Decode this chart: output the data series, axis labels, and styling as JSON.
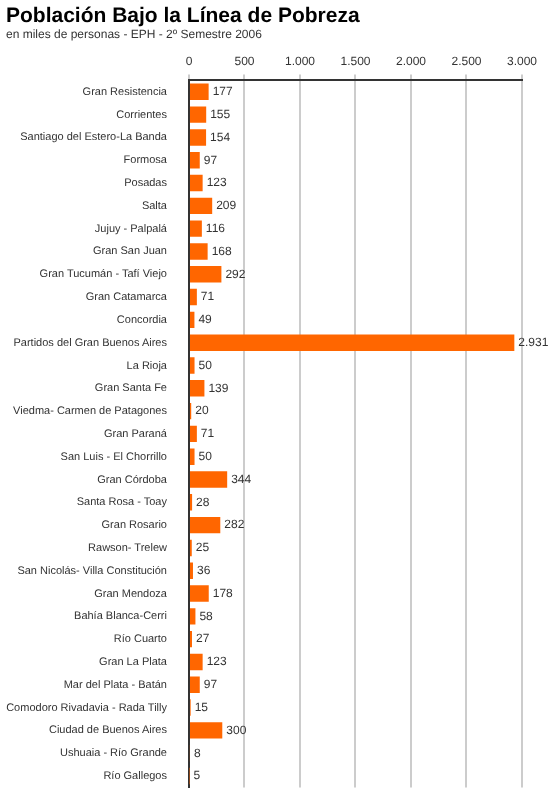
{
  "chart_data": {
    "type": "bar",
    "orientation": "horizontal",
    "title": "Población Bajo la Línea de Pobreza",
    "subtitle": "en miles de personas - EPH - 2º Semestre 2006",
    "categories": [
      "Gran Resistencia",
      "Corrientes",
      "Santiago del Estero-La Banda",
      "Formosa",
      "Posadas",
      "Salta",
      "Jujuy - Palpalá",
      "Gran San Juan",
      "Gran Tucumán - Tafí Viejo",
      "Gran Catamarca",
      "Concordia",
      "Partidos del Gran Buenos Aires",
      "La Rioja",
      "Gran Santa Fe",
      "Viedma- Carmen de Patagones",
      "Gran Paraná",
      "San Luis - El Chorrillo",
      "Gran Córdoba",
      "Santa Rosa - Toay",
      "Gran Rosario",
      "Rawson- Trelew",
      "San Nicolás- Villa Constitución",
      "Gran Mendoza",
      "Bahía Blanca-Cerri",
      "Río Cuarto",
      "Gran La Plata",
      "Mar del Plata - Batán",
      "Comodoro Rivadavia - Rada Tilly",
      "Ciudad de Buenos Aires",
      "Ushuaia - Río Grande",
      "Río Gallegos"
    ],
    "values": [
      177,
      155,
      154,
      97,
      123,
      209,
      116,
      168,
      292,
      71,
      49,
      2931,
      50,
      139,
      20,
      71,
      50,
      344,
      28,
      282,
      25,
      36,
      178,
      58,
      27,
      123,
      97,
      15,
      300,
      8,
      5
    ],
    "value_labels": [
      "177",
      "155",
      "154",
      "97",
      "123",
      "209",
      "116",
      "168",
      "292",
      "71",
      "49",
      "2.931",
      "50",
      "139",
      "20",
      "71",
      "50",
      "344",
      "28",
      "282",
      "25",
      "36",
      "178",
      "58",
      "27",
      "123",
      "97",
      "15",
      "300",
      "8",
      "5"
    ],
    "color": "#ff6600",
    "xlim": [
      0,
      3000
    ],
    "xticks": [
      0,
      500,
      {
        "value": 1000,
        "label": "1.000"
      },
      {
        "value": 1500,
        "label": "1.500"
      },
      {
        "value": 2000,
        "label": "2.000"
      },
      {
        "value": 2500,
        "label": "2.500"
      },
      {
        "value": 3000,
        "label": "3.000"
      }
    ],
    "grid": "x",
    "legend": false
  }
}
